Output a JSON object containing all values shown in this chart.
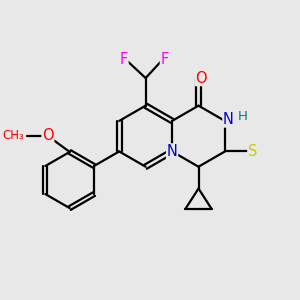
{
  "bg_color": "#e8e8e8",
  "bond_color": "#000000",
  "bond_width": 1.6,
  "atom_colors": {
    "N": "#0000cc",
    "O": "#ff0000",
    "S": "#cccc00",
    "F": "#ff00ff",
    "H": "#008080"
  },
  "font_size": 10.5
}
